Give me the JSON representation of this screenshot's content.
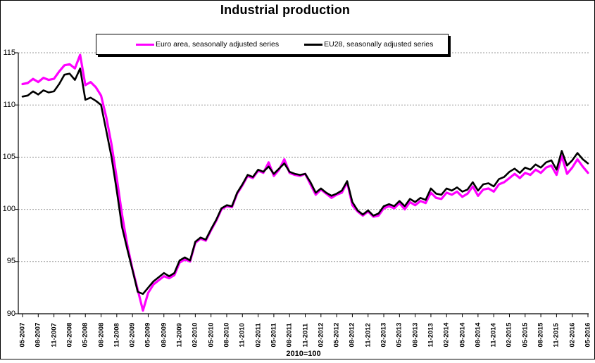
{
  "title": "Industrial production",
  "footnote": "2010=100",
  "legend": {
    "items": [
      {
        "label": "Euro area, seasonally adjusted series",
        "color": "#FF00FF"
      },
      {
        "label": "EU28, seasonally adjusted series",
        "color": "#000000"
      }
    ]
  },
  "chart_data": {
    "type": "line",
    "title": "Industrial production",
    "subtitle": "",
    "index_note": "2010=100",
    "x_unit": "month",
    "x_start": "05-2007",
    "x_end": "05-2016",
    "x_tick_labels": [
      "05-2007",
      "08-2007",
      "11-2007",
      "02-2008",
      "05-2008",
      "08-2008",
      "11-2008",
      "02-2009",
      "05-2009",
      "08-2009",
      "11-2009",
      "02-2010",
      "05-2010",
      "08-2010",
      "11-2010",
      "02-2011",
      "05-2011",
      "08-2011",
      "11-2011",
      "02-2012",
      "05-2012",
      "08-2012",
      "11-2012",
      "02-2013",
      "05-2013",
      "08-2013",
      "11-2013",
      "02-2014",
      "05-2014",
      "08-2014",
      "11-2014",
      "02-2015",
      "05-2015",
      "08-2015",
      "11-2015",
      "02-2016",
      "05-2016"
    ],
    "months_per_tick": 3,
    "ylim": [
      90,
      115
    ],
    "y_ticks": [
      90,
      95,
      100,
      105,
      110,
      115
    ],
    "grid": "horizontal dashed gray",
    "grid_color": "#999999",
    "legend_position": "top",
    "series": [
      {
        "name": "Euro area, seasonally adjusted series",
        "color": "#FF00FF",
        "width": 3.2,
        "values": [
          112.0,
          112.1,
          112.5,
          112.2,
          112.6,
          112.4,
          112.5,
          113.2,
          113.8,
          113.9,
          113.5,
          114.8,
          111.9,
          112.2,
          111.7,
          110.9,
          108.8,
          106.2,
          103.0,
          99.5,
          96.6,
          94.3,
          92.3,
          90.3,
          92.0,
          92.8,
          93.2,
          93.6,
          93.4,
          93.7,
          94.9,
          95.2,
          95.0,
          96.8,
          97.2,
          97.0,
          98.0,
          98.9,
          100.0,
          100.3,
          100.2,
          101.5,
          102.3,
          103.2,
          103.0,
          103.7,
          103.5,
          104.5,
          103.2,
          103.8,
          104.8,
          103.5,
          103.3,
          103.2,
          103.4,
          102.4,
          101.4,
          101.9,
          101.5,
          101.1,
          101.4,
          101.6,
          102.6,
          100.4,
          99.8,
          99.4,
          99.8,
          99.3,
          99.4,
          100.1,
          100.3,
          100.1,
          100.6,
          100.0,
          100.7,
          100.4,
          100.8,
          100.6,
          101.6,
          101.1,
          101.0,
          101.6,
          101.4,
          101.7,
          101.2,
          101.5,
          102.2,
          101.3,
          101.9,
          102.0,
          101.7,
          102.4,
          102.6,
          103.0,
          103.4,
          103.0,
          103.5,
          103.3,
          103.8,
          103.5,
          104.0,
          104.2,
          103.3,
          105.1,
          103.4,
          104.0,
          104.8,
          104.1,
          103.5
        ]
      },
      {
        "name": "EU28, seasonally adjusted series",
        "color": "#000000",
        "width": 2.6,
        "values": [
          110.8,
          110.9,
          111.3,
          111.0,
          111.4,
          111.2,
          111.3,
          112.0,
          112.9,
          113.0,
          112.4,
          113.5,
          110.5,
          110.7,
          110.4,
          110.0,
          107.5,
          105.0,
          101.8,
          98.3,
          96.2,
          94.2,
          92.1,
          91.9,
          92.5,
          93.1,
          93.5,
          93.9,
          93.6,
          93.9,
          95.1,
          95.4,
          95.1,
          96.9,
          97.3,
          97.1,
          98.1,
          99.0,
          100.1,
          100.4,
          100.3,
          101.6,
          102.4,
          103.3,
          103.1,
          103.8,
          103.6,
          104.1,
          103.4,
          103.9,
          104.4,
          103.6,
          103.4,
          103.3,
          103.4,
          102.6,
          101.6,
          102.0,
          101.6,
          101.3,
          101.5,
          101.8,
          102.7,
          100.7,
          99.9,
          99.5,
          99.9,
          99.4,
          99.6,
          100.3,
          100.5,
          100.3,
          100.8,
          100.3,
          101.0,
          100.7,
          101.1,
          100.9,
          102.0,
          101.5,
          101.4,
          102.0,
          101.8,
          102.1,
          101.7,
          101.9,
          102.6,
          101.8,
          102.4,
          102.5,
          102.2,
          102.9,
          103.1,
          103.6,
          103.9,
          103.5,
          104.0,
          103.8,
          104.3,
          104.0,
          104.5,
          104.7,
          103.8,
          105.6,
          104.2,
          104.7,
          105.4,
          104.8,
          104.4
        ]
      }
    ]
  }
}
